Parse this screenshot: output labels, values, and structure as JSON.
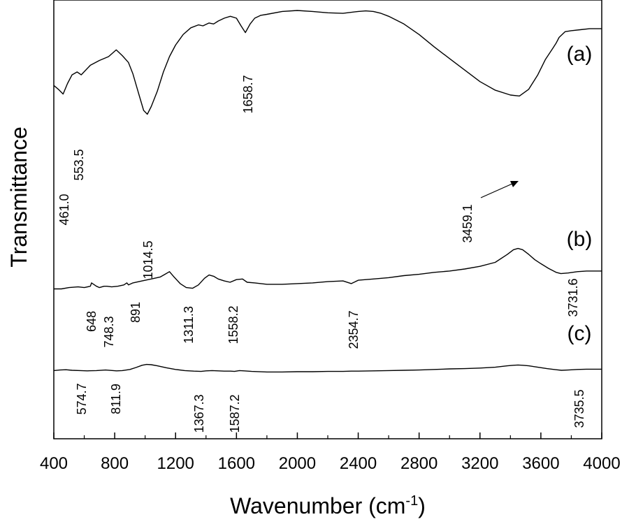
{
  "chart_data": {
    "type": "line",
    "title": "",
    "xlabel": "Wavenumber (cm",
    "xlabel_sup": "-1",
    "xlabel_close": ")",
    "ylabel": "Transmittance",
    "xlim": [
      400,
      4000
    ],
    "ylim": [
      0,
      100
    ],
    "x_ticks": [
      400,
      800,
      1200,
      1600,
      2000,
      2400,
      2800,
      3200,
      3600,
      4000
    ],
    "x_tick_labels": [
      "400",
      "800",
      "1200",
      "1600",
      "2000",
      "2400",
      "2800",
      "3200",
      "3600",
      "4000"
    ],
    "y_ticks_shown": false,
    "grid": false,
    "legend": "none",
    "series": [
      {
        "tag": "(a)",
        "x": [
          400,
          430,
          461,
          490,
          520,
          553,
          580,
          640,
          700,
          760,
          810,
          850,
          890,
          920,
          960,
          990,
          1014.5,
          1040,
          1080,
          1120,
          1160,
          1200,
          1250,
          1300,
          1350,
          1380,
          1420,
          1450,
          1480,
          1520,
          1560,
          1600,
          1630,
          1658.7,
          1690,
          1720,
          1760,
          1800,
          1900,
          2000,
          2100,
          2200,
          2300,
          2400,
          2450,
          2500,
          2550,
          2600,
          2700,
          2800,
          2900,
          3000,
          3100,
          3200,
          3300,
          3400,
          3459.1,
          3520,
          3580,
          3630,
          3680,
          3700,
          3720,
          3760,
          3800,
          3860,
          3920,
          4000
        ],
        "y": [
          61.0,
          59.0,
          56.5,
          62.0,
          66.5,
          68.0,
          66.5,
          71.5,
          74.0,
          76.0,
          79.5,
          76.5,
          73.0,
          67.0,
          56.0,
          48.0,
          46.0,
          50.0,
          58.0,
          68.0,
          76.0,
          82.0,
          87.5,
          91.0,
          92.5,
          92.0,
          93.5,
          93.0,
          94.5,
          96.0,
          97.0,
          96.0,
          92.0,
          88.5,
          93.0,
          96.0,
          97.5,
          98.0,
          99.5,
          100.0,
          99.5,
          98.8,
          98.5,
          99.5,
          99.8,
          99.5,
          98.5,
          97.0,
          93.0,
          87.5,
          81.0,
          75.0,
          69.0,
          63.0,
          58.5,
          56.0,
          55.5,
          59.0,
          66.5,
          74.5,
          80.5,
          83.0,
          86.0,
          89.0,
          89.5,
          90.0,
          90.5,
          90.5
        ]
      },
      {
        "tag": "(b)",
        "x": [
          400,
          450,
          500,
          560,
          600,
          640,
          648,
          680,
          700,
          730,
          748.3,
          780,
          820,
          860,
          880,
          891,
          920,
          980,
          1040,
          1100,
          1130,
          1160,
          1190,
          1230,
          1270,
          1311.3,
          1350,
          1390,
          1420,
          1450,
          1480,
          1520,
          1558.2,
          1600,
          1640,
          1670,
          1720,
          1800,
          1900,
          2000,
          2100,
          2200,
          2300,
          2354.7,
          2400,
          2500,
          2600,
          2700,
          2800,
          2900,
          3000,
          3100,
          3200,
          3300,
          3380,
          3420,
          3450,
          3480,
          3520,
          3560,
          3600,
          3650,
          3700,
          3731.6,
          3780,
          3840,
          3900,
          4000
        ],
        "y": [
          35.0,
          35.0,
          36.0,
          36.5,
          36.0,
          37.0,
          39.5,
          37.0,
          36.0,
          37.0,
          37.0,
          36.5,
          37.0,
          38.0,
          39.5,
          38.0,
          39.5,
          41.0,
          42.5,
          44.0,
          46.0,
          48.0,
          44.0,
          39.0,
          36.0,
          35.5,
          38.0,
          43.0,
          45.5,
          44.5,
          42.5,
          41.0,
          40.0,
          42.0,
          42.5,
          40.0,
          39.5,
          38.5,
          38.5,
          39.0,
          39.5,
          40.5,
          41.0,
          39.0,
          41.5,
          42.5,
          43.5,
          45.0,
          46.0,
          47.5,
          48.5,
          50.0,
          52.0,
          55.0,
          61.0,
          64.5,
          65.5,
          64.5,
          61.0,
          57.0,
          54.0,
          50.5,
          47.5,
          46.5,
          47.0,
          48.0,
          48.5,
          48.5
        ]
      },
      {
        "tag": "(c)",
        "x": [
          400,
          440,
          480,
          520,
          574.7,
          620,
          680,
          740,
          811.9,
          850,
          900,
          940,
          980,
          1010,
          1040,
          1080,
          1140,
          1200,
          1260,
          1320,
          1367.3,
          1400,
          1440,
          1480,
          1520,
          1560,
          1587.2,
          1620,
          1650,
          1700,
          1800,
          1900,
          2000,
          2100,
          2200,
          2300,
          2354.7,
          2400,
          2500,
          2600,
          2700,
          2800,
          2900,
          3000,
          3100,
          3200,
          3300,
          3380,
          3420,
          3450,
          3480,
          3520,
          3580,
          3640,
          3700,
          3735.5,
          3780,
          3840,
          3900,
          4000
        ],
        "y": [
          24.5,
          25.5,
          26.0,
          25.0,
          24.5,
          24.0,
          24.5,
          25.5,
          24.0,
          24.5,
          26.5,
          30.0,
          34.0,
          35.5,
          35.0,
          33.0,
          29.5,
          26.5,
          24.5,
          23.5,
          23.0,
          24.0,
          24.5,
          24.0,
          23.5,
          23.5,
          23.0,
          24.5,
          24.0,
          23.0,
          22.0,
          22.0,
          22.5,
          22.5,
          23.0,
          23.0,
          23.5,
          23.5,
          24.0,
          24.5,
          25.0,
          25.5,
          26.5,
          27.5,
          28.0,
          29.0,
          30.5,
          33.0,
          34.0,
          34.5,
          34.0,
          33.0,
          30.5,
          28.0,
          26.0,
          25.0,
          25.5,
          26.5,
          27.0,
          27.0
        ]
      }
    ],
    "annotations": [
      {
        "text": "461.0",
        "x": 461.0,
        "series": 0
      },
      {
        "text": "553.5",
        "x": 553.5,
        "series": 0
      },
      {
        "text": "1014.5",
        "x": 1014.5,
        "series": 0
      },
      {
        "text": "1658.7",
        "x": 1658.7,
        "series": 0
      },
      {
        "text": "3459.1",
        "x": 3459.1,
        "series": 0,
        "arrow": true
      },
      {
        "text": "648",
        "x": 648,
        "series": 1
      },
      {
        "text": "748.3",
        "x": 748.3,
        "series": 1
      },
      {
        "text": "891",
        "x": 891,
        "series": 1
      },
      {
        "text": "1311.3",
        "x": 1311.3,
        "series": 1
      },
      {
        "text": "1558.2",
        "x": 1558.2,
        "series": 1
      },
      {
        "text": "2354.7",
        "x": 2354.7,
        "series": 1
      },
      {
        "text": "3731.6",
        "x": 3731.6,
        "series": 1
      },
      {
        "text": "574.7",
        "x": 574.7,
        "series": 2
      },
      {
        "text": "811.9",
        "x": 811.9,
        "series": 2
      },
      {
        "text": "1367.3",
        "x": 1367.3,
        "series": 2
      },
      {
        "text": "1587.2",
        "x": 1587.2,
        "series": 2
      },
      {
        "text": "3735.5",
        "x": 3735.5,
        "series": 2
      }
    ]
  }
}
